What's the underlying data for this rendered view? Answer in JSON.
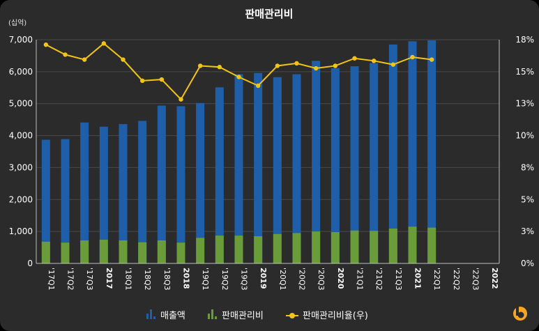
{
  "chart_data": {
    "type": "bar",
    "title": "판매관리비",
    "y_unit_label": "(십억)",
    "categories": [
      "'17Q1",
      "'17Q2",
      "'17Q3",
      "2017",
      "'18Q1",
      "'18Q2",
      "'18Q3",
      "2018",
      "'19Q1",
      "'19Q2",
      "'19Q3",
      "2019",
      "'20Q1",
      "'20Q2",
      "'20Q3",
      "2020",
      "'21Q1",
      "'21Q2",
      "'21Q3",
      "2021",
      "'22Q1",
      "'22Q2",
      "'22Q3",
      "2022"
    ],
    "bold_categories": [
      "2017",
      "2018",
      "2019",
      "2020",
      "2021",
      "2022"
    ],
    "left_axis": {
      "ylim": [
        0,
        7000
      ],
      "ticks": [
        "0",
        "1,000",
        "2,000",
        "3,000",
        "4,000",
        "5,000",
        "6,000",
        "7,000"
      ]
    },
    "right_axis": {
      "ylim": [
        0,
        18
      ],
      "ticks": [
        "0%",
        "3%",
        "5%",
        "8%",
        "10%",
        "13%",
        "15%",
        "18%"
      ]
    },
    "grid": true,
    "legend_position": "bottom",
    "series": [
      {
        "name": "매출액",
        "type": "bar",
        "axis": "left",
        "color": "#1f5ea8",
        "values": [
          3870,
          3890,
          4410,
          4280,
          4360,
          4460,
          4940,
          4920,
          5020,
          5510,
          5920,
          5960,
          5830,
          5920,
          6340,
          6110,
          6170,
          6270,
          6850,
          6950,
          6980,
          null,
          null,
          null
        ]
      },
      {
        "name": "판매관리비",
        "type": "bar",
        "axis": "left",
        "color": "#6a9c3a",
        "values": [
          680,
          650,
          720,
          740,
          720,
          660,
          720,
          650,
          800,
          870,
          870,
          850,
          920,
          950,
          1000,
          980,
          1030,
          1020,
          1090,
          1150,
          1120,
          null,
          null,
          null
        ]
      },
      {
        "name": "판매관리비율(우)",
        "type": "line",
        "axis": "right",
        "color": "#f2c418",
        "values": [
          17.6,
          16.8,
          16.4,
          17.7,
          16.4,
          14.7,
          14.8,
          13.2,
          15.9,
          15.8,
          15.0,
          14.3,
          15.9,
          16.1,
          15.7,
          15.9,
          16.5,
          16.3,
          16.0,
          16.6,
          16.4,
          null,
          null,
          null
        ]
      }
    ]
  }
}
